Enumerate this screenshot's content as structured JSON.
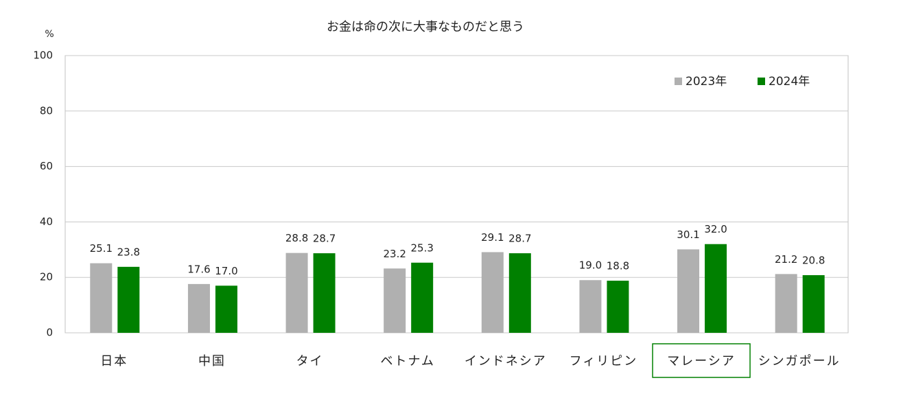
{
  "chart_data": {
    "type": "bar",
    "title": "お金は命の次に大事なものだと思う",
    "y_unit": "%",
    "categories": [
      "日本",
      "中国",
      "タイ",
      "ベトナム",
      "インドネシア",
      "フィリピン",
      "マレーシア",
      "シンガポール"
    ],
    "series": [
      {
        "name": "2023年",
        "color": "#b0b0b0",
        "values": [
          25.1,
          17.6,
          28.8,
          23.2,
          29.1,
          19.0,
          30.1,
          21.2
        ],
        "value_labels": [
          "25.1",
          "17.6",
          "28.8",
          "23.2",
          "29.1",
          "19.0",
          "30.1",
          "21.2"
        ]
      },
      {
        "name": "2024年",
        "color": "#008000",
        "values": [
          23.8,
          17.0,
          28.7,
          25.3,
          28.7,
          18.8,
          32.0,
          20.8
        ],
        "value_labels": [
          "23.8",
          "17.0",
          "28.7",
          "25.3",
          "28.7",
          "18.8",
          "32.0",
          "20.8"
        ]
      }
    ],
    "ylim": [
      0,
      100
    ],
    "yticks": [
      0,
      20,
      40,
      60,
      80,
      100
    ],
    "grid": true,
    "legend": "top-right",
    "highlight_index": 6,
    "highlight_color": "#008000"
  }
}
